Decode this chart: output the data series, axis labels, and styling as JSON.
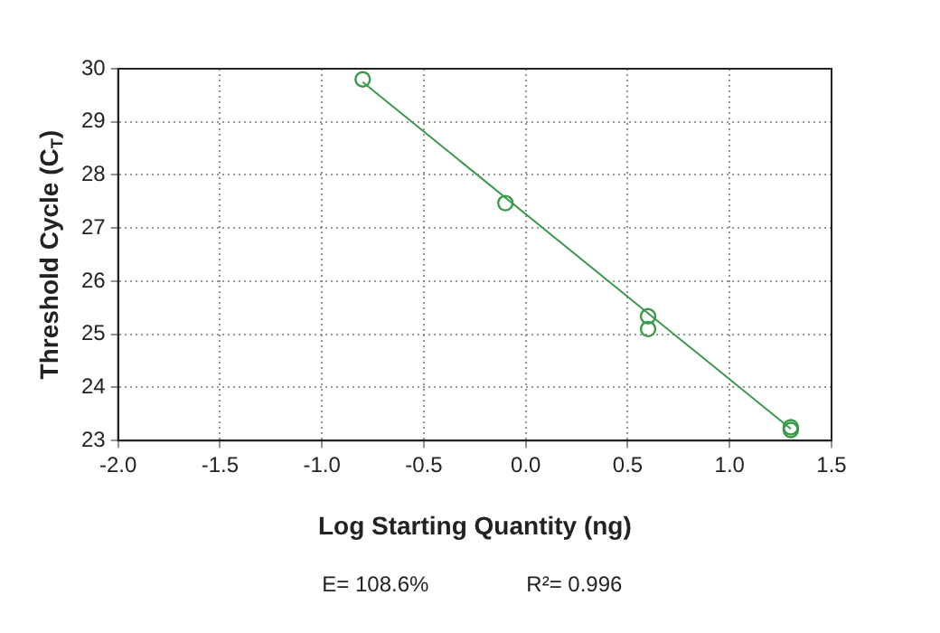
{
  "chart_data": {
    "type": "scatter",
    "xlabel": "Log Starting Quantity (ng)",
    "ylabel": "Threshold Cycle (C$_{T}$)",
    "xlim": [
      -2.0,
      1.5
    ],
    "xticks": [
      {
        "value": -2,
        "label": "-2.0"
      },
      {
        "value": -1.5,
        "label": "-1.5"
      },
      {
        "value": -1,
        "label": "-1.0"
      },
      {
        "value": -0.5,
        "label": "-0.5"
      },
      {
        "value": 0,
        "label": "0.0"
      },
      {
        "value": 0.5,
        "label": "0.5"
      },
      {
        "value": 1,
        "label": "1.0"
      },
      {
        "value": 1.5,
        "label": "1.5"
      }
    ],
    "ylim": [
      23,
      30
    ],
    "yticks": [
      23,
      24,
      25,
      26,
      27,
      28,
      29,
      30
    ],
    "grid": true,
    "series": [
      {
        "marker": "circle",
        "color": "#3a9a4a",
        "x": [
          -0.8,
          -0.1,
          0.6,
          0.6,
          1.3,
          1.3
        ],
        "values": [
          29.8,
          27.47,
          25.34,
          25.1,
          23.25,
          23.2
        ]
      },
      {
        "type": "line",
        "marker": "none",
        "color": "#3a9a4a",
        "x": [
          -0.8,
          1.3
        ],
        "values": [
          29.75,
          23.22
        ]
      }
    ],
    "annotations": [
      "E= 108.6%",
      "R²= 0.996"
    ]
  }
}
